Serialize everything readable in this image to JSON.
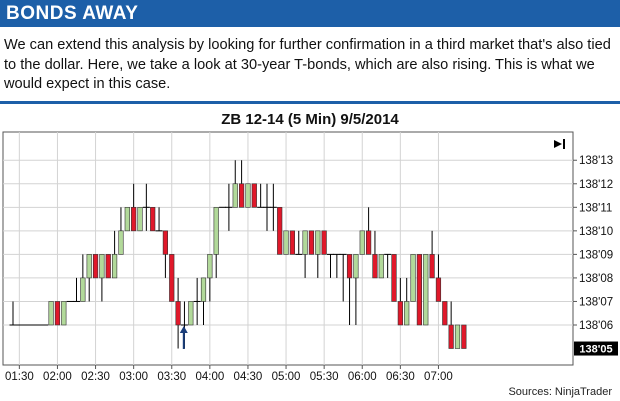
{
  "header": {
    "title": "BONDS AWAY"
  },
  "intro": {
    "text": "We can extend this analysis by looking for further confirmation in a third market that's also tied to the dollar. Here, we take a look at 30-year T-bonds, which are also rising. This is what we would expect in this case."
  },
  "source": "Sources: NinjaTrader",
  "colors": {
    "header_bg": "#1d5fa8",
    "up_candle": "#b2d99a",
    "down_candle": "#e0182a",
    "wick": "#000000",
    "arrow": "#1a3d7a"
  },
  "chart_data": {
    "type": "candlestick",
    "title": "ZB 12-14 (5 Min) 9/5/2014",
    "tick_unit": "1/32",
    "y_ticks": [
      "138'06",
      "138'07",
      "138'08",
      "138'09",
      "138'10",
      "138'11",
      "138'12",
      "138'13"
    ],
    "y_tick_values": [
      6,
      7,
      8,
      9,
      10,
      11,
      12,
      13
    ],
    "ylim": [
      4.3,
      14.2
    ],
    "x_ticks": [
      "01:30",
      "02:00",
      "02:30",
      "03:00",
      "03:30",
      "04:00",
      "04:30",
      "05:00",
      "05:30",
      "06:00",
      "06:30",
      "07:00"
    ],
    "x_tick_index": [
      1,
      7,
      13,
      19,
      25,
      31,
      37,
      43,
      49,
      55,
      61,
      67
    ],
    "last_price_label": "138'05",
    "last_price_value": 5,
    "grid": true,
    "candles": [
      {
        "o": 6,
        "h": 7,
        "l": 6,
        "c": 6
      },
      {
        "o": 6,
        "h": 6,
        "l": 6,
        "c": 6
      },
      {
        "o": 6,
        "h": 6,
        "l": 6,
        "c": 6
      },
      {
        "o": 6,
        "h": 6,
        "l": 6,
        "c": 6
      },
      {
        "o": 6,
        "h": 6,
        "l": 6,
        "c": 6
      },
      {
        "o": 6,
        "h": 6,
        "l": 6,
        "c": 6
      },
      {
        "o": 6,
        "h": 7,
        "l": 6,
        "c": 7
      },
      {
        "o": 7,
        "h": 7,
        "l": 6,
        "c": 6
      },
      {
        "o": 6,
        "h": 7,
        "l": 6,
        "c": 7
      },
      {
        "o": 7,
        "h": 7,
        "l": 7,
        "c": 7
      },
      {
        "o": 7,
        "h": 8,
        "l": 7,
        "c": 7
      },
      {
        "o": 7,
        "h": 9,
        "l": 7,
        "c": 8
      },
      {
        "o": 8,
        "h": 9,
        "l": 7,
        "c": 9
      },
      {
        "o": 9,
        "h": 9,
        "l": 8,
        "c": 8
      },
      {
        "o": 8,
        "h": 9,
        "l": 7,
        "c": 9
      },
      {
        "o": 9,
        "h": 9,
        "l": 8,
        "c": 8
      },
      {
        "o": 8,
        "h": 10,
        "l": 8,
        "c": 9
      },
      {
        "o": 9,
        "h": 11,
        "l": 9,
        "c": 10
      },
      {
        "o": 10,
        "h": 11,
        "l": 10,
        "c": 11
      },
      {
        "o": 11,
        "h": 12,
        "l": 10,
        "c": 10
      },
      {
        "o": 10,
        "h": 11,
        "l": 10,
        "c": 11
      },
      {
        "o": 11,
        "h": 12,
        "l": 10,
        "c": 11
      },
      {
        "o": 11,
        "h": 11,
        "l": 10,
        "c": 10
      },
      {
        "o": 10,
        "h": 11,
        "l": 10,
        "c": 10
      },
      {
        "o": 10,
        "h": 10,
        "l": 8,
        "c": 9
      },
      {
        "o": 9,
        "h": 9,
        "l": 7,
        "c": 7
      },
      {
        "o": 7,
        "h": 8,
        "l": 5,
        "c": 6
      },
      {
        "o": 6,
        "h": 7,
        "l": 5,
        "c": 6
      },
      {
        "o": 6,
        "h": 7,
        "l": 6,
        "c": 7
      },
      {
        "o": 7,
        "h": 8,
        "l": 6,
        "c": 7
      },
      {
        "o": 7,
        "h": 8,
        "l": 6,
        "c": 8
      },
      {
        "o": 8,
        "h": 9,
        "l": 7,
        "c": 9
      },
      {
        "o": 9,
        "h": 11,
        "l": 8,
        "c": 11
      },
      {
        "o": 11,
        "h": 11,
        "l": 11,
        "c": 11
      },
      {
        "o": 11,
        "h": 12,
        "l": 10,
        "c": 11
      },
      {
        "o": 11,
        "h": 13,
        "l": 11,
        "c": 12
      },
      {
        "o": 12,
        "h": 13,
        "l": 11,
        "c": 11
      },
      {
        "o": 11,
        "h": 12,
        "l": 11,
        "c": 12
      },
      {
        "o": 12,
        "h": 12,
        "l": 11,
        "c": 11
      },
      {
        "o": 11,
        "h": 12,
        "l": 11,
        "c": 11
      },
      {
        "o": 11,
        "h": 12,
        "l": 10,
        "c": 11
      },
      {
        "o": 11,
        "h": 12,
        "l": 10,
        "c": 11
      },
      {
        "o": 11,
        "h": 11,
        "l": 9,
        "c": 9
      },
      {
        "o": 9,
        "h": 10,
        "l": 9,
        "c": 10
      },
      {
        "o": 10,
        "h": 10,
        "l": 9,
        "c": 9
      },
      {
        "o": 9,
        "h": 10,
        "l": 9,
        "c": 9
      },
      {
        "o": 9,
        "h": 10,
        "l": 8,
        "c": 10
      },
      {
        "o": 10,
        "h": 10,
        "l": 9,
        "c": 9
      },
      {
        "o": 9,
        "h": 10,
        "l": 8,
        "c": 10
      },
      {
        "o": 10,
        "h": 10,
        "l": 9,
        "c": 9
      },
      {
        "o": 9,
        "h": 9,
        "l": 8,
        "c": 9
      },
      {
        "o": 9,
        "h": 9,
        "l": 8,
        "c": 9
      },
      {
        "o": 9,
        "h": 9,
        "l": 7,
        "c": 9
      },
      {
        "o": 9,
        "h": 9,
        "l": 6,
        "c": 8
      },
      {
        "o": 8,
        "h": 9,
        "l": 6,
        "c": 9
      },
      {
        "o": 9,
        "h": 10,
        "l": 9,
        "c": 10
      },
      {
        "o": 10,
        "h": 11,
        "l": 9,
        "c": 9
      },
      {
        "o": 9,
        "h": 10,
        "l": 8,
        "c": 8
      },
      {
        "o": 8,
        "h": 9,
        "l": 8,
        "c": 9
      },
      {
        "o": 9,
        "h": 9,
        "l": 8,
        "c": 9
      },
      {
        "o": 9,
        "h": 9,
        "l": 7,
        "c": 7
      },
      {
        "o": 7,
        "h": 8,
        "l": 6,
        "c": 6
      },
      {
        "o": 6,
        "h": 8,
        "l": 6,
        "c": 7
      },
      {
        "o": 7,
        "h": 9,
        "l": 7,
        "c": 9
      },
      {
        "o": 9,
        "h": 9,
        "l": 6,
        "c": 6
      },
      {
        "o": 6,
        "h": 9,
        "l": 6,
        "c": 9
      },
      {
        "o": 9,
        "h": 10,
        "l": 8,
        "c": 8
      },
      {
        "o": 8,
        "h": 9,
        "l": 7,
        "c": 7
      },
      {
        "o": 7,
        "h": 7,
        "l": 6,
        "c": 6
      },
      {
        "o": 6,
        "h": 7,
        "l": 5,
        "c": 5
      },
      {
        "o": 5,
        "h": 6,
        "l": 5,
        "c": 6
      },
      {
        "o": 6,
        "h": 6,
        "l": 5,
        "c": 5
      }
    ],
    "annotations": [
      {
        "type": "up-arrow",
        "at_index": 28
      }
    ]
  }
}
